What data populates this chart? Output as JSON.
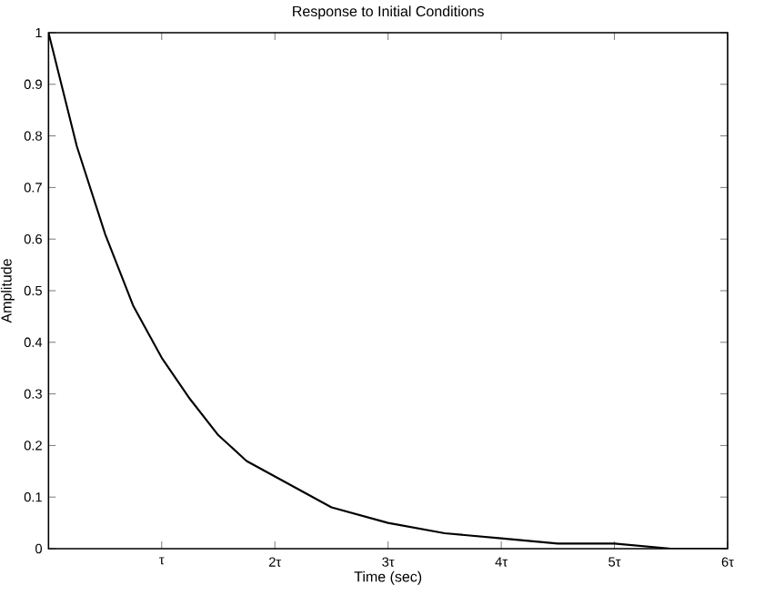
{
  "chart_data": {
    "type": "line",
    "title": "Response to Initial Conditions",
    "xlabel": "Time (sec)",
    "ylabel": "Amplitude",
    "x": [
      0,
      0.25,
      0.5,
      0.75,
      1,
      1.25,
      1.5,
      1.75,
      2,
      2.5,
      3,
      3.5,
      4,
      4.5,
      5,
      5.5,
      6
    ],
    "series": [
      {
        "color": "#000000",
        "values": [
          1,
          0.78,
          0.61,
          0.47,
          0.37,
          0.29,
          0.22,
          0.17,
          0.14,
          0.08,
          0.05,
          0.03,
          0.02,
          0.01,
          0.01,
          0,
          0
        ]
      }
    ],
    "xlim": [
      0,
      6
    ],
    "ylim": [
      0,
      1
    ],
    "xticks": [
      {
        "value": 1,
        "label": "τ"
      },
      {
        "value": 2,
        "label": "2τ"
      },
      {
        "value": 3,
        "label": "3τ"
      },
      {
        "value": 4,
        "label": "4τ"
      },
      {
        "value": 5,
        "label": "5τ"
      },
      {
        "value": 6,
        "label": "6τ"
      }
    ],
    "yticks": [
      0,
      0.1,
      0.2,
      0.3,
      0.4,
      0.5,
      0.6,
      0.7,
      0.8,
      0.9,
      1
    ],
    "grid": false,
    "marker": "none",
    "line_style": "solid"
  }
}
